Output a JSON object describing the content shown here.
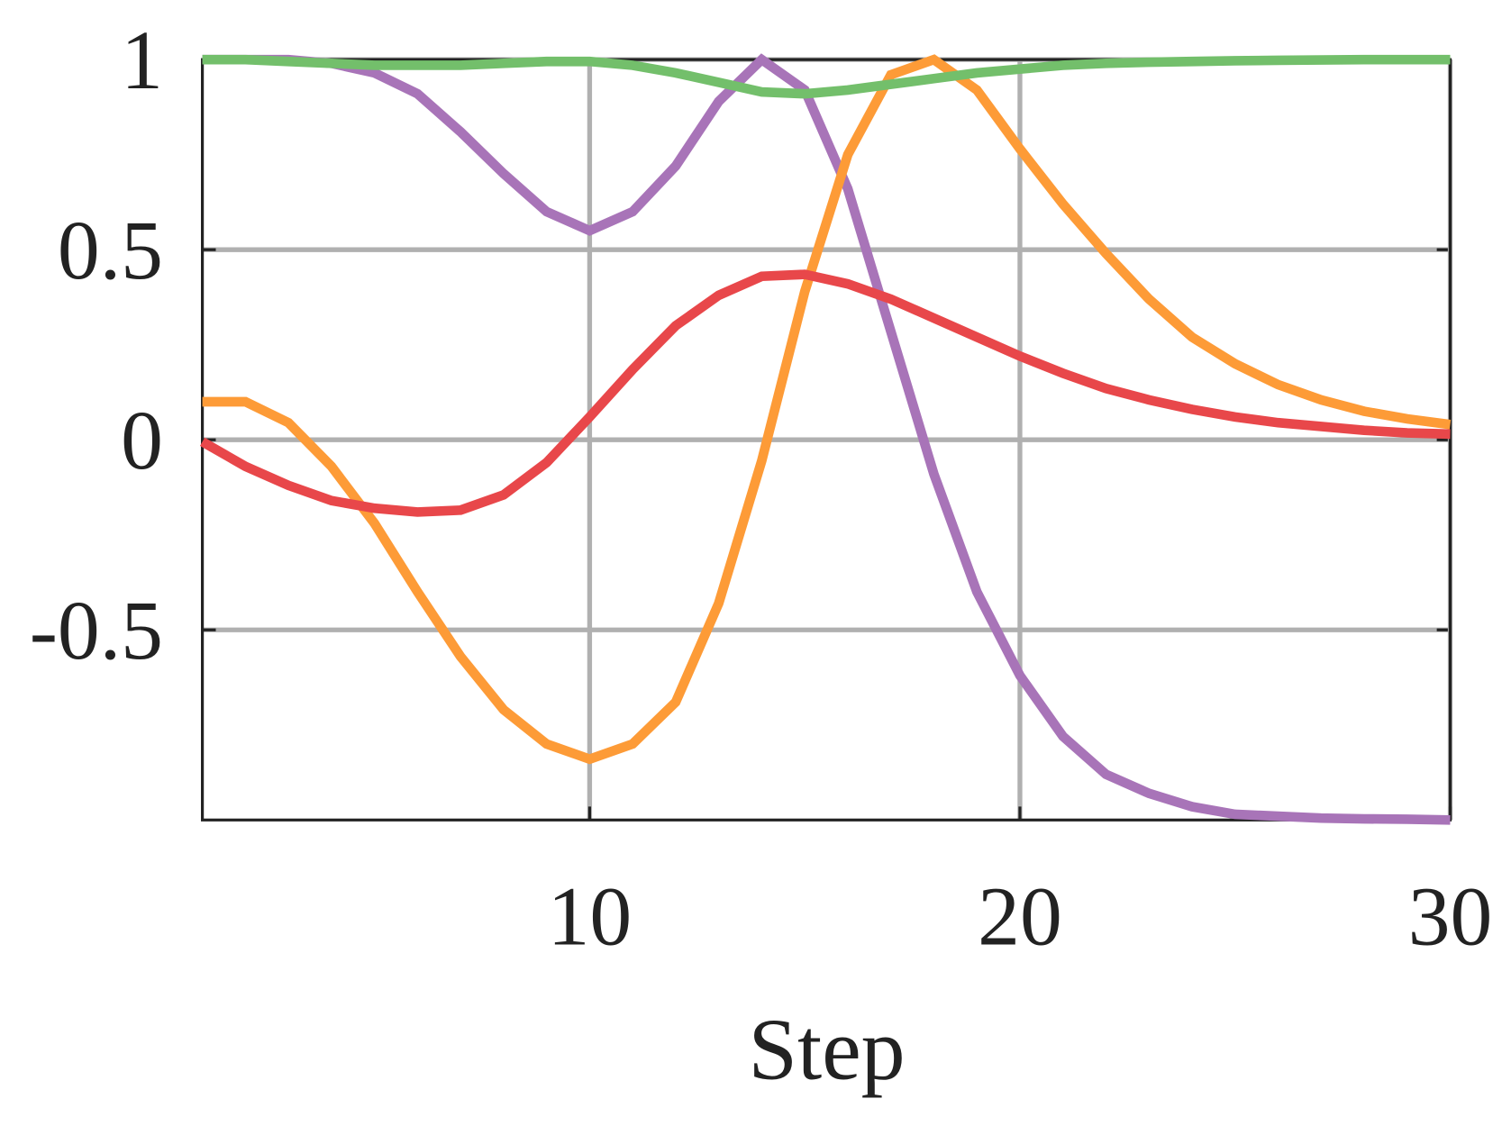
{
  "chart_data": {
    "type": "line",
    "xlabel": "Step",
    "x": [
      1,
      2,
      3,
      4,
      5,
      6,
      7,
      8,
      9,
      10,
      11,
      12,
      13,
      14,
      15,
      16,
      17,
      18,
      19,
      20,
      21,
      22,
      23,
      24,
      25,
      26,
      27,
      28,
      29,
      30
    ],
    "series": [
      {
        "color": "#a874b8",
        "values": [
          1,
          1,
          1,
          0.99,
          0.965,
          0.91,
          0.81,
          0.7,
          0.6,
          0.55,
          0.6,
          0.72,
          0.89,
          1,
          0.92,
          0.66,
          0.285,
          -0.09,
          -0.4,
          -0.62,
          -0.78,
          -0.88,
          -0.93,
          -0.965,
          -0.985,
          -0.99,
          -0.995,
          -0.997,
          -0.998,
          -1
        ]
      },
      {
        "color": "#fd9b37",
        "values": [
          0.1,
          0.1,
          0.045,
          -0.07,
          -0.22,
          -0.4,
          -0.57,
          -0.71,
          -0.8,
          -0.84,
          -0.8,
          -0.69,
          -0.43,
          -0.055,
          0.39,
          0.75,
          0.96,
          1,
          0.92,
          0.765,
          0.62,
          0.49,
          0.37,
          0.27,
          0.2,
          0.145,
          0.105,
          0.075,
          0.055,
          0.04
        ]
      },
      {
        "color": "#e8474a",
        "values": [
          -0.005,
          -0.07,
          -0.12,
          -0.16,
          -0.18,
          -0.19,
          -0.185,
          -0.145,
          -0.06,
          0.06,
          0.185,
          0.3,
          0.38,
          0.43,
          0.435,
          0.41,
          0.37,
          0.32,
          0.27,
          0.22,
          0.175,
          0.135,
          0.105,
          0.08,
          0.06,
          0.045,
          0.035,
          0.025,
          0.018,
          0.015
        ]
      },
      {
        "color": "#73bf6b",
        "values": [
          1,
          1,
          0.995,
          0.99,
          0.985,
          0.985,
          0.985,
          0.99,
          0.995,
          0.995,
          0.985,
          0.965,
          0.94,
          0.915,
          0.91,
          0.92,
          0.935,
          0.95,
          0.965,
          0.975,
          0.985,
          0.99,
          0.993,
          0.995,
          0.997,
          0.998,
          0.999,
          1,
          1,
          1
        ]
      }
    ],
    "xlim": [
      1,
      30
    ],
    "ylim": [
      -1,
      1
    ],
    "xticks": [
      10,
      20,
      30
    ],
    "yticks": [
      -0.5,
      0,
      0.5,
      1
    ],
    "grid": true
  }
}
